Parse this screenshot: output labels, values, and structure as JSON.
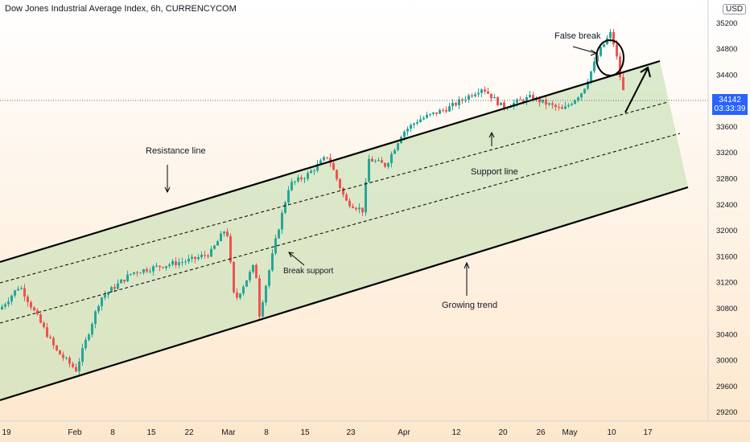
{
  "header": {
    "title": "Dow Jones Industrial Average Index, 6h, CURRENCYCOM",
    "currency": "USD"
  },
  "price_label": {
    "price": "34142",
    "countdown": "03:33:39"
  },
  "annotations": {
    "resistance": "Resistance line",
    "support": "Support line",
    "break_support": "Break support",
    "growing_trend": "Growing trend",
    "false_break": "False break"
  },
  "colors": {
    "up": "#26a69a",
    "down": "#ef5350",
    "channel_fill": "#cfe3bd",
    "price_label": "#2962ff",
    "background_top": "#ffffff",
    "background_bottom": "#fde7cc"
  },
  "chart_data": {
    "type": "candlestick",
    "title": "Dow Jones Industrial Average Index, 6h, CURRENCYCOM",
    "y_ticks": [
      29200,
      29600,
      30000,
      30400,
      30800,
      31200,
      31600,
      32000,
      32400,
      32800,
      33200,
      33600,
      34000,
      34400,
      34800,
      35200
    ],
    "x_ticks": [
      "19",
      "Feb",
      "8",
      "15",
      "22",
      "Mar",
      "8",
      "15",
      "23",
      "Apr",
      "12",
      "20",
      "26",
      "May",
      "10",
      "17"
    ],
    "ylim": [
      29060,
      35550
    ],
    "last_price": 34142,
    "price_path": [
      [
        "19",
        30780
      ],
      [
        "19",
        31150
      ],
      [
        "Feb",
        30150
      ],
      [
        "Feb",
        29850
      ],
      [
        "8",
        30950
      ],
      [
        "8",
        31350
      ],
      [
        "15",
        31450
      ],
      [
        "15",
        31550
      ],
      [
        "22",
        31650
      ],
      [
        "22",
        32050
      ],
      [
        "22",
        30900
      ],
      [
        "Mar",
        31500
      ],
      [
        "Mar",
        30650
      ],
      [
        "8",
        31950
      ],
      [
        "8",
        32700
      ],
      [
        "15",
        32850
      ],
      [
        "15",
        33150
      ],
      [
        "15",
        32950
      ],
      [
        "23",
        32450
      ],
      [
        "23",
        32300
      ],
      [
        "23",
        33100
      ],
      [
        "Apr",
        33000
      ],
      [
        "Apr",
        33500
      ],
      [
        "12",
        33700
      ],
      [
        "12",
        33900
      ],
      [
        "20",
        34200
      ],
      [
        "20",
        33900
      ],
      [
        "26",
        34050
      ],
      [
        "26",
        33850
      ],
      [
        "May",
        34150
      ],
      [
        "May",
        34750
      ],
      [
        "10",
        35050
      ],
      [
        "10",
        34600
      ],
      [
        "10",
        34142
      ]
    ],
    "channel": {
      "upper_line": [
        [
          "19",
          31620
        ],
        [
          "17",
          34750
        ]
      ],
      "lower_line": [
        [
          "19",
          29600
        ],
        [
          "17",
          32800
        ]
      ],
      "dashed_lines": 2
    }
  }
}
